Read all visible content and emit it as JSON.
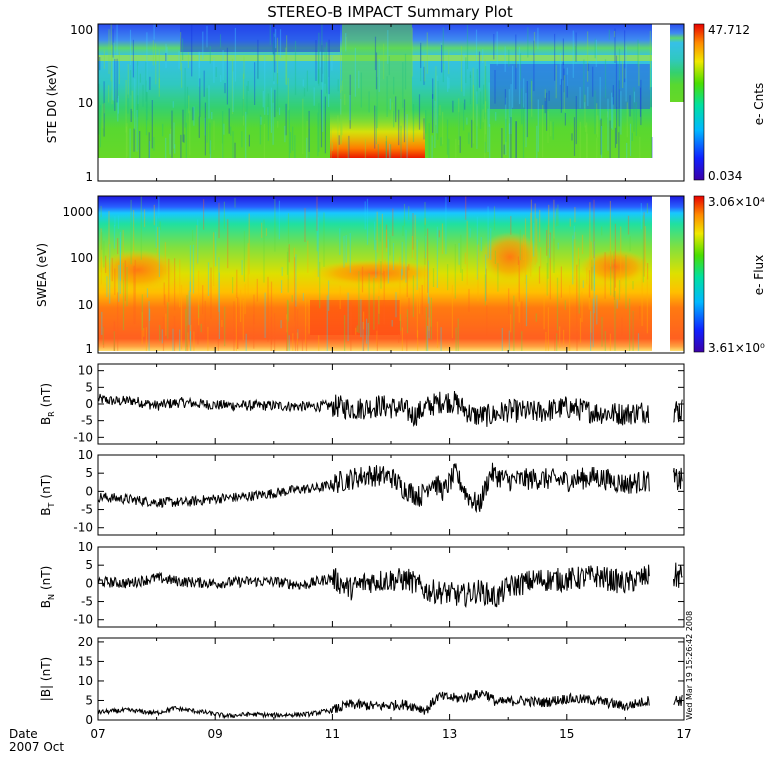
{
  "title": "STEREO-B IMPACT Summary Plot",
  "date_label": "Date",
  "date_sub": "2007 Oct",
  "timestamp": "Wed Mar 19 15:26:42 2008",
  "x_ticks": [
    "07",
    "09",
    "11",
    "13",
    "15",
    "17"
  ],
  "chart_data": [
    {
      "type": "heatmap",
      "name": "ste",
      "ylabel": "STE D0 (keV)",
      "y_ticks": [
        "1",
        "10",
        "100"
      ],
      "y_range": [
        1,
        100
      ],
      "y_scale": "log",
      "colorbar": {
        "label": "e- Cnts",
        "max": "47.712",
        "min": "0.034"
      }
    },
    {
      "type": "heatmap",
      "name": "swea",
      "ylabel": "SWEA (eV)",
      "y_ticks": [
        "1",
        "10",
        "100",
        "1000"
      ],
      "y_range": [
        1,
        2000
      ],
      "y_scale": "log",
      "colorbar": {
        "label": "e- Flux",
        "max": "3.06×10⁴",
        "min": "3.61×10⁰"
      }
    },
    {
      "type": "line",
      "name": "br",
      "ylabel": "B",
      "ylabel_sub": "R",
      "ylabel_unit": "(nT)",
      "y_ticks": [
        "10",
        "5",
        "0",
        "-5",
        "-10"
      ],
      "ylim": [
        -12,
        12
      ],
      "x_range": [
        7,
        17
      ],
      "keypoints": [
        [
          7.0,
          1.5
        ],
        [
          7.3,
          0.8
        ],
        [
          7.6,
          1.0
        ],
        [
          8.0,
          -0.5
        ],
        [
          8.4,
          0.5
        ],
        [
          9.0,
          -0.3
        ],
        [
          9.6,
          -0.5
        ],
        [
          10.0,
          -0.5
        ],
        [
          10.6,
          -0.8
        ],
        [
          11.0,
          -0.5
        ],
        [
          11.4,
          -1.5
        ],
        [
          11.8,
          -0.5
        ],
        [
          12.2,
          -1.5
        ],
        [
          12.4,
          -3.5
        ],
        [
          12.6,
          -1.0
        ],
        [
          12.9,
          1.0
        ],
        [
          13.1,
          0.5
        ],
        [
          13.4,
          -3.5
        ],
        [
          13.7,
          -3.5
        ],
        [
          14.0,
          -2.0
        ],
        [
          14.5,
          -2.5
        ],
        [
          15.0,
          -1.0
        ],
        [
          15.5,
          -2.5
        ],
        [
          16.0,
          -3.0
        ],
        [
          16.4,
          -2.0
        ]
      ]
    },
    {
      "type": "line",
      "name": "bt",
      "ylabel": "B",
      "ylabel_sub": "T",
      "ylabel_unit": "(nT)",
      "y_ticks": [
        "10",
        "5",
        "0",
        "-5",
        "-10"
      ],
      "ylim": [
        -12,
        10
      ],
      "x_range": [
        7,
        17
      ],
      "keypoints": [
        [
          7.0,
          -1.5
        ],
        [
          7.4,
          -2.0
        ],
        [
          8.0,
          -3.0
        ],
        [
          8.5,
          -3.0
        ],
        [
          9.0,
          -2.0
        ],
        [
          9.5,
          -1.5
        ],
        [
          10.0,
          -0.5
        ],
        [
          10.4,
          0.5
        ],
        [
          10.8,
          1.0
        ],
        [
          11.2,
          3.0
        ],
        [
          11.6,
          4.5
        ],
        [
          12.0,
          4.0
        ],
        [
          12.2,
          1.0
        ],
        [
          12.5,
          -1.5
        ],
        [
          12.7,
          3.0
        ],
        [
          12.9,
          0.0
        ],
        [
          13.1,
          5.0
        ],
        [
          13.3,
          -1.0
        ],
        [
          13.5,
          -4.0
        ],
        [
          13.7,
          5.0
        ],
        [
          14.0,
          3.0
        ],
        [
          14.5,
          3.5
        ],
        [
          15.0,
          3.0
        ],
        [
          15.5,
          4.0
        ],
        [
          16.0,
          2.0
        ],
        [
          16.4,
          3.0
        ]
      ]
    },
    {
      "type": "line",
      "name": "bn",
      "ylabel": "B",
      "ylabel_sub": "N",
      "ylabel_unit": "(nT)",
      "y_ticks": [
        "10",
        "5",
        "0",
        "-5",
        "-10"
      ],
      "ylim": [
        -12,
        10
      ],
      "x_range": [
        7,
        17
      ],
      "keypoints": [
        [
          7.0,
          0.5
        ],
        [
          7.5,
          0.0
        ],
        [
          8.0,
          1.5
        ],
        [
          8.4,
          0.5
        ],
        [
          9.0,
          0.0
        ],
        [
          9.5,
          0.5
        ],
        [
          10.0,
          0.5
        ],
        [
          10.5,
          -0.5
        ],
        [
          11.0,
          1.5
        ],
        [
          11.3,
          -1.5
        ],
        [
          11.6,
          0.5
        ],
        [
          12.0,
          1.0
        ],
        [
          12.3,
          1.0
        ],
        [
          12.6,
          -2.0
        ],
        [
          12.9,
          -2.5
        ],
        [
          13.2,
          -3.5
        ],
        [
          13.5,
          -2.0
        ],
        [
          13.8,
          -4.0
        ],
        [
          14.0,
          -1.0
        ],
        [
          14.5,
          1.0
        ],
        [
          15.0,
          1.0
        ],
        [
          15.5,
          2.0
        ],
        [
          16.0,
          0.0
        ],
        [
          16.4,
          2.0
        ]
      ]
    },
    {
      "type": "line",
      "name": "bmag",
      "ylabel": "|B| (nT)",
      "y_ticks": [
        "20",
        "15",
        "10",
        "5",
        "0"
      ],
      "ylim": [
        0,
        21
      ],
      "x_range": [
        7,
        17
      ],
      "keypoints": [
        [
          7.0,
          2.0
        ],
        [
          7.5,
          2.5
        ],
        [
          8.0,
          1.8
        ],
        [
          8.3,
          3.0
        ],
        [
          8.8,
          2.0
        ],
        [
          9.2,
          1.0
        ],
        [
          9.6,
          1.5
        ],
        [
          10.0,
          1.2
        ],
        [
          10.6,
          1.5
        ],
        [
          11.0,
          2.5
        ],
        [
          11.3,
          4.0
        ],
        [
          11.8,
          3.5
        ],
        [
          12.2,
          4.0
        ],
        [
          12.4,
          3.5
        ],
        [
          12.6,
          2.5
        ],
        [
          12.8,
          6.0
        ],
        [
          13.2,
          5.5
        ],
        [
          13.6,
          7.0
        ],
        [
          13.8,
          4.5
        ],
        [
          14.2,
          5.0
        ],
        [
          14.6,
          4.5
        ],
        [
          15.0,
          5.5
        ],
        [
          15.5,
          5.0
        ],
        [
          16.0,
          3.5
        ],
        [
          16.4,
          5.0
        ]
      ]
    }
  ]
}
